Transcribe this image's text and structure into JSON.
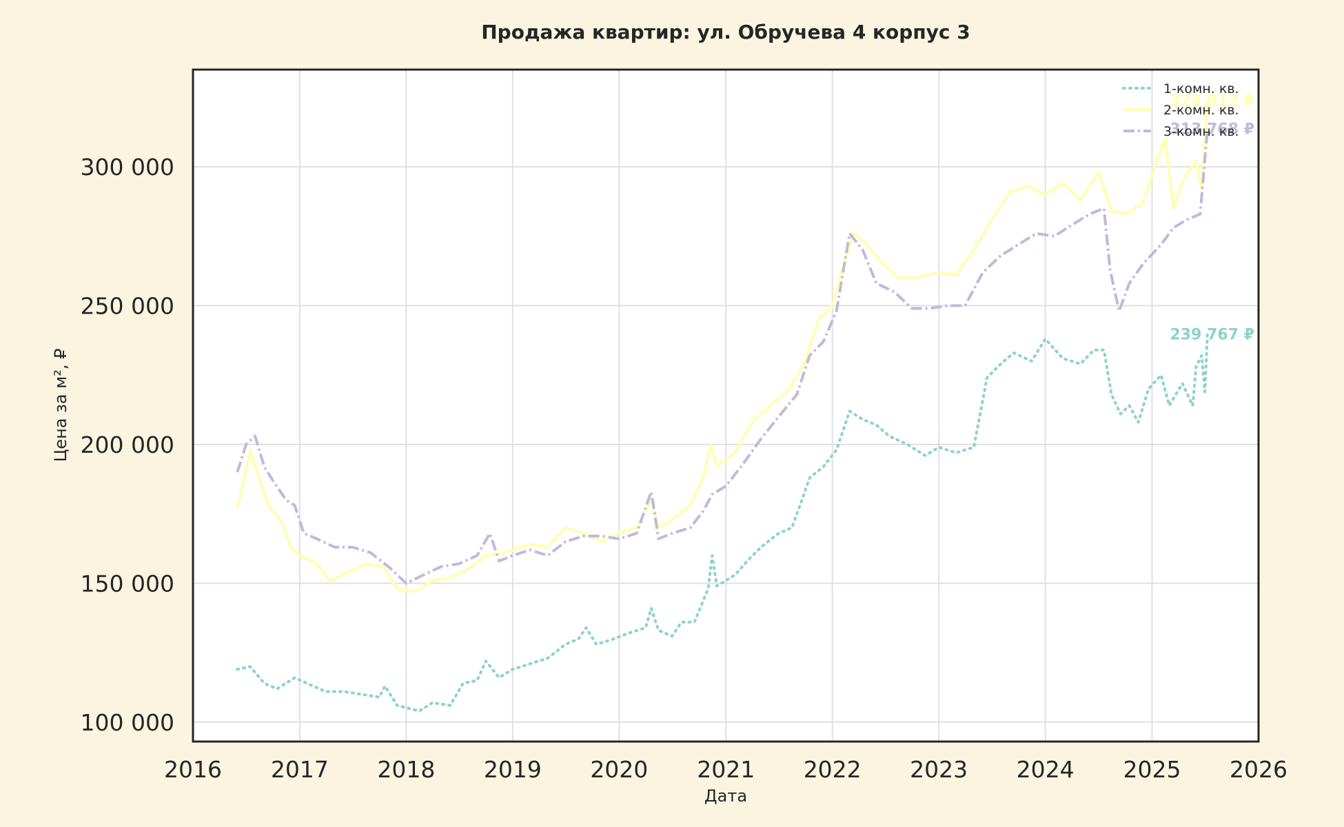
{
  "chart_data": {
    "type": "line",
    "title": "Продажа квартир: ул. Обручева 4 корпус 3",
    "xlabel": "Дата",
    "ylabel": "Цена за м², ₽",
    "xlim": [
      "2016-01-01",
      "2026-01-01"
    ],
    "ylim": [
      93000,
      335000
    ],
    "x_ticks": [
      "2016",
      "2017",
      "2018",
      "2019",
      "2020",
      "2021",
      "2022",
      "2023",
      "2024",
      "2025",
      "2026"
    ],
    "y_ticks": [
      100000,
      150000,
      200000,
      250000,
      300000
    ],
    "y_tick_labels": [
      "100 000",
      "150 000",
      "200 000",
      "250 000",
      "300 000"
    ],
    "grid": true,
    "legend_position": "top-right",
    "series": [
      {
        "name": "1-комн. кв.",
        "color": "#8dd3c7",
        "style": "dotted",
        "end_label": "239 767 ₽",
        "points": [
          [
            "2016-06-01",
            119000
          ],
          [
            "2016-07-15",
            120000
          ],
          [
            "2016-09-01",
            114000
          ],
          [
            "2016-10-15",
            112000
          ],
          [
            "2016-12-15",
            116000
          ],
          [
            "2017-02-15",
            113000
          ],
          [
            "2017-04-01",
            111000
          ],
          [
            "2017-06-01",
            111000
          ],
          [
            "2017-08-01",
            110000
          ],
          [
            "2017-10-01",
            109000
          ],
          [
            "2017-10-20",
            113000
          ],
          [
            "2017-12-01",
            106000
          ],
          [
            "2018-02-15",
            104000
          ],
          [
            "2018-04-01",
            107000
          ],
          [
            "2018-06-01",
            106000
          ],
          [
            "2018-07-15",
            114000
          ],
          [
            "2018-09-01",
            115000
          ],
          [
            "2018-10-01",
            122000
          ],
          [
            "2018-11-15",
            116000
          ],
          [
            "2019-01-01",
            119000
          ],
          [
            "2019-03-01",
            121000
          ],
          [
            "2019-05-01",
            123000
          ],
          [
            "2019-07-01",
            128000
          ],
          [
            "2019-08-15",
            130000
          ],
          [
            "2019-09-10",
            134000
          ],
          [
            "2019-10-15",
            128000
          ],
          [
            "2019-12-15",
            130000
          ],
          [
            "2020-02-01",
            132000
          ],
          [
            "2020-04-01",
            134000
          ],
          [
            "2020-04-20",
            141000
          ],
          [
            "2020-05-15",
            133000
          ],
          [
            "2020-07-01",
            131000
          ],
          [
            "2020-08-01",
            136000
          ],
          [
            "2020-09-15",
            136000
          ],
          [
            "2020-11-01",
            148000
          ],
          [
            "2020-11-15",
            160000
          ],
          [
            "2020-12-01",
            149000
          ],
          [
            "2021-02-01",
            153000
          ],
          [
            "2021-03-15",
            158000
          ],
          [
            "2021-05-01",
            163000
          ],
          [
            "2021-07-01",
            168000
          ],
          [
            "2021-08-15",
            170000
          ],
          [
            "2021-09-15",
            179000
          ],
          [
            "2021-10-15",
            188000
          ],
          [
            "2021-12-01",
            192000
          ],
          [
            "2022-01-15",
            198000
          ],
          [
            "2022-03-01",
            212000
          ],
          [
            "2022-04-15",
            209000
          ],
          [
            "2022-06-01",
            207000
          ],
          [
            "2022-07-15",
            203000
          ],
          [
            "2022-09-15",
            200000
          ],
          [
            "2022-11-15",
            196000
          ],
          [
            "2023-01-01",
            199000
          ],
          [
            "2023-03-01",
            197000
          ],
          [
            "2023-05-01",
            199000
          ],
          [
            "2023-06-15",
            224000
          ],
          [
            "2023-08-01",
            229000
          ],
          [
            "2023-09-15",
            233000
          ],
          [
            "2023-11-15",
            230000
          ],
          [
            "2024-01-01",
            238000
          ],
          [
            "2024-03-01",
            231000
          ],
          [
            "2024-05-01",
            229000
          ],
          [
            "2024-06-15",
            234000
          ],
          [
            "2024-07-20",
            234000
          ],
          [
            "2024-08-15",
            218000
          ],
          [
            "2024-09-15",
            211000
          ],
          [
            "2024-10-15",
            214000
          ],
          [
            "2024-11-15",
            208000
          ],
          [
            "2024-12-20",
            220000
          ],
          [
            "2025-02-01",
            225000
          ],
          [
            "2025-03-01",
            214000
          ],
          [
            "2025-04-15",
            222000
          ],
          [
            "2025-05-20",
            214000
          ],
          [
            "2025-06-01",
            228000
          ],
          [
            "2025-06-20",
            232000
          ],
          [
            "2025-07-01",
            219000
          ],
          [
            "2025-07-10",
            239767
          ]
        ]
      },
      {
        "name": "2-комн. кв.",
        "color": "#ffffb3",
        "style": "solid",
        "end_label": "324 012 ₽",
        "points": [
          [
            "2016-06-01",
            177000
          ],
          [
            "2016-06-20",
            186000
          ],
          [
            "2016-07-15",
            198000
          ],
          [
            "2016-08-15",
            188000
          ],
          [
            "2016-09-15",
            178000
          ],
          [
            "2016-11-01",
            172000
          ],
          [
            "2016-12-01",
            163000
          ],
          [
            "2017-01-01",
            160000
          ],
          [
            "2017-03-01",
            157000
          ],
          [
            "2017-04-15",
            151000
          ],
          [
            "2017-06-15",
            154000
          ],
          [
            "2017-08-15",
            157000
          ],
          [
            "2017-10-15",
            156000
          ],
          [
            "2017-12-01",
            148000
          ],
          [
            "2018-02-01",
            147000
          ],
          [
            "2018-04-01",
            151000
          ],
          [
            "2018-06-01",
            152000
          ],
          [
            "2018-08-01",
            155000
          ],
          [
            "2018-10-01",
            160000
          ],
          [
            "2018-12-01",
            161000
          ],
          [
            "2019-03-01",
            164000
          ],
          [
            "2019-05-01",
            163000
          ],
          [
            "2019-07-01",
            170000
          ],
          [
            "2019-09-01",
            168000
          ],
          [
            "2019-11-01",
            165000
          ],
          [
            "2020-01-01",
            168000
          ],
          [
            "2020-03-01",
            170000
          ],
          [
            "2020-04-20",
            180000
          ],
          [
            "2020-05-15",
            170000
          ],
          [
            "2020-07-01",
            173000
          ],
          [
            "2020-09-01",
            178000
          ],
          [
            "2020-10-15",
            188000
          ],
          [
            "2020-11-10",
            200000
          ],
          [
            "2020-12-01",
            192000
          ],
          [
            "2021-02-01",
            197000
          ],
          [
            "2021-04-01",
            208000
          ],
          [
            "2021-06-01",
            214000
          ],
          [
            "2021-08-01",
            219000
          ],
          [
            "2021-10-01",
            230000
          ],
          [
            "2021-11-15",
            245000
          ],
          [
            "2022-01-01",
            250000
          ],
          [
            "2022-02-01",
            262000
          ],
          [
            "2022-03-15",
            276000
          ],
          [
            "2022-05-01",
            272000
          ],
          [
            "2022-06-15",
            266000
          ],
          [
            "2022-08-15",
            260000
          ],
          [
            "2022-10-15",
            260000
          ],
          [
            "2023-01-01",
            262000
          ],
          [
            "2023-03-01",
            261000
          ],
          [
            "2023-05-01",
            270000
          ],
          [
            "2023-07-01",
            281000
          ],
          [
            "2023-09-01",
            291000
          ],
          [
            "2023-11-01",
            293000
          ],
          [
            "2024-01-01",
            290000
          ],
          [
            "2024-03-01",
            294000
          ],
          [
            "2024-05-01",
            288000
          ],
          [
            "2024-07-01",
            298000
          ],
          [
            "2024-08-15",
            284000
          ],
          [
            "2024-10-01",
            283000
          ],
          [
            "2024-12-01",
            287000
          ],
          [
            "2025-01-15",
            302000
          ],
          [
            "2025-02-15",
            310000
          ],
          [
            "2025-03-15",
            285000
          ],
          [
            "2025-04-20",
            296000
          ],
          [
            "2025-06-01",
            302000
          ],
          [
            "2025-06-20",
            292000
          ],
          [
            "2025-07-10",
            324012
          ]
        ]
      },
      {
        "name": "3-комн. кв.",
        "color": "#bebada",
        "style": "dashdot",
        "end_label": "313 768 ₽",
        "points": [
          [
            "2016-06-01",
            190000
          ],
          [
            "2016-07-01",
            200000
          ],
          [
            "2016-08-01",
            203000
          ],
          [
            "2016-09-01",
            192000
          ],
          [
            "2016-10-01",
            187000
          ],
          [
            "2016-11-15",
            180000
          ],
          [
            "2016-12-15",
            178000
          ],
          [
            "2017-01-15",
            168000
          ],
          [
            "2017-03-01",
            166000
          ],
          [
            "2017-05-01",
            163000
          ],
          [
            "2017-07-01",
            163000
          ],
          [
            "2017-09-01",
            161000
          ],
          [
            "2017-11-01",
            156000
          ],
          [
            "2018-01-01",
            150000
          ],
          [
            "2018-03-01",
            153000
          ],
          [
            "2018-05-01",
            156000
          ],
          [
            "2018-07-01",
            157000
          ],
          [
            "2018-09-01",
            160000
          ],
          [
            "2018-10-15",
            168000
          ],
          [
            "2018-11-15",
            158000
          ],
          [
            "2019-01-01",
            160000
          ],
          [
            "2019-03-01",
            162000
          ],
          [
            "2019-05-01",
            160000
          ],
          [
            "2019-07-01",
            165000
          ],
          [
            "2019-09-01",
            167000
          ],
          [
            "2019-11-01",
            167000
          ],
          [
            "2020-01-01",
            166000
          ],
          [
            "2020-03-01",
            168000
          ],
          [
            "2020-04-20",
            183000
          ],
          [
            "2020-05-15",
            166000
          ],
          [
            "2020-07-01",
            168000
          ],
          [
            "2020-09-01",
            170000
          ],
          [
            "2020-10-15",
            176000
          ],
          [
            "2020-11-15",
            182000
          ],
          [
            "2021-01-01",
            185000
          ],
          [
            "2021-03-01",
            193000
          ],
          [
            "2021-05-01",
            202000
          ],
          [
            "2021-07-01",
            210000
          ],
          [
            "2021-09-01",
            218000
          ],
          [
            "2021-10-15",
            232000
          ],
          [
            "2021-12-01",
            237000
          ],
          [
            "2022-01-15",
            248000
          ],
          [
            "2022-03-01",
            276000
          ],
          [
            "2022-04-15",
            270000
          ],
          [
            "2022-06-01",
            258000
          ],
          [
            "2022-08-01",
            255000
          ],
          [
            "2022-10-01",
            249000
          ],
          [
            "2022-12-01",
            249000
          ],
          [
            "2023-02-01",
            250000
          ],
          [
            "2023-04-01",
            250000
          ],
          [
            "2023-06-01",
            262000
          ],
          [
            "2023-08-01",
            268000
          ],
          [
            "2023-10-01",
            272000
          ],
          [
            "2023-12-01",
            276000
          ],
          [
            "2024-02-01",
            275000
          ],
          [
            "2024-04-01",
            279000
          ],
          [
            "2024-06-01",
            283000
          ],
          [
            "2024-07-20",
            285000
          ],
          [
            "2024-08-10",
            263000
          ],
          [
            "2024-09-10",
            248000
          ],
          [
            "2024-10-15",
            258000
          ],
          [
            "2024-12-01",
            265000
          ],
          [
            "2025-02-01",
            272000
          ],
          [
            "2025-03-15",
            278000
          ],
          [
            "2025-05-01",
            281000
          ],
          [
            "2025-06-15",
            283000
          ],
          [
            "2025-07-10",
            313768
          ]
        ]
      }
    ]
  }
}
